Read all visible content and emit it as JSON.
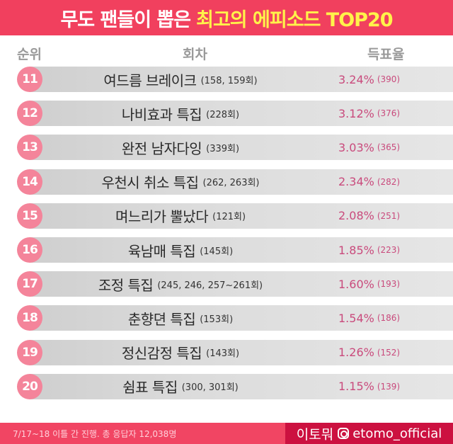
{
  "header": {
    "title_part1": "무도 팬들이 뽑은",
    "title_part2": "최고의 에피소드 TOP20"
  },
  "columns": {
    "rank": "순위",
    "episode": "회차",
    "vote": "득표율"
  },
  "rows": [
    {
      "rank": "11",
      "name": "여드름 브레이크",
      "episodes": "(158, 159회)",
      "pct": "3.24%",
      "count": "(390)"
    },
    {
      "rank": "12",
      "name": "나비효과 특집",
      "episodes": "(228회)",
      "pct": "3.12%",
      "count": "(376)"
    },
    {
      "rank": "13",
      "name": "완전 남자다잉",
      "episodes": "(339회)",
      "pct": "3.03%",
      "count": "(365)"
    },
    {
      "rank": "14",
      "name": "우천시 취소 특집",
      "episodes": "(262, 263회)",
      "pct": "2.34%",
      "count": "(282)"
    },
    {
      "rank": "15",
      "name": "며느리가 뿔났다",
      "episodes": "(121회)",
      "pct": "2.08%",
      "count": "(251)"
    },
    {
      "rank": "16",
      "name": "육남매 특집",
      "episodes": "(145회)",
      "pct": "1.85%",
      "count": "(223)"
    },
    {
      "rank": "17",
      "name": "조정 특집",
      "episodes": "(245, 246, 257~261회)",
      "pct": "1.60%",
      "count": "(193)"
    },
    {
      "rank": "18",
      "name": "춘향뎐 특집",
      "episodes": "(153회)",
      "pct": "1.54%",
      "count": "(186)"
    },
    {
      "rank": "19",
      "name": "정신감정 특집",
      "episodes": "(143회)",
      "pct": "1.26%",
      "count": "(152)"
    },
    {
      "rank": "20",
      "name": "쉼표 특집",
      "episodes": "(300, 301회)",
      "pct": "1.15%",
      "count": "(139)"
    }
  ],
  "footer": {
    "note": "7/17~18 이틀 간 진행. 총 응답자 12,038명",
    "brand": "이토뭐",
    "icon": "instagram-icon",
    "handle": "etomo_official"
  },
  "colors": {
    "header_bg": "#f1405e",
    "highlight": "#fff34a",
    "badge": "#f4849a",
    "vote_text": "#c94a7c",
    "footer_bg": "#f14563",
    "footer_brand_bg": "#cc1140"
  }
}
